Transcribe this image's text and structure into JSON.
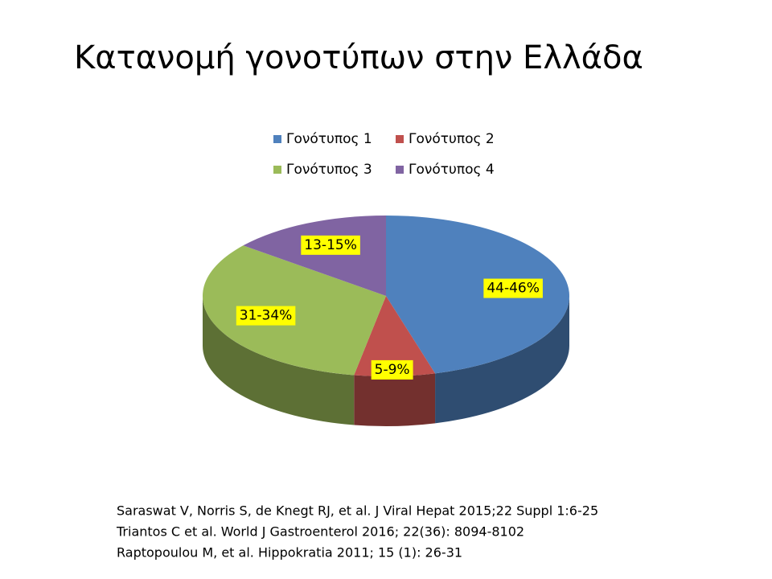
{
  "chart_data": {
    "type": "pie",
    "title": "Κατανομή γονοτύπων στην Ελλάδα",
    "categories": [
      "Γονότυπος 1",
      "Γονότυπος 2",
      "Γονότυπος 3",
      "Γονότυπος 4"
    ],
    "values": [
      45,
      7,
      32.5,
      14
    ],
    "value_labels": [
      "44-46%",
      "5-9%",
      "31-34%",
      "13-15%"
    ],
    "colors": [
      "#4f81bd",
      "#c0504d",
      "#9bbb59",
      "#8064a2"
    ],
    "legend": "top"
  },
  "references": [
    "Saraswat V, Norris S, de Knegt RJ, et al. J Viral Hepat 2015;22 Suppl 1:6-25",
    "Triantos C et al. World J Gastroenterol  2016; 22(36): 8094-8102",
    "Raptopoulou M, et al. Hippokratia 2011; 15 (1): 26-31"
  ]
}
